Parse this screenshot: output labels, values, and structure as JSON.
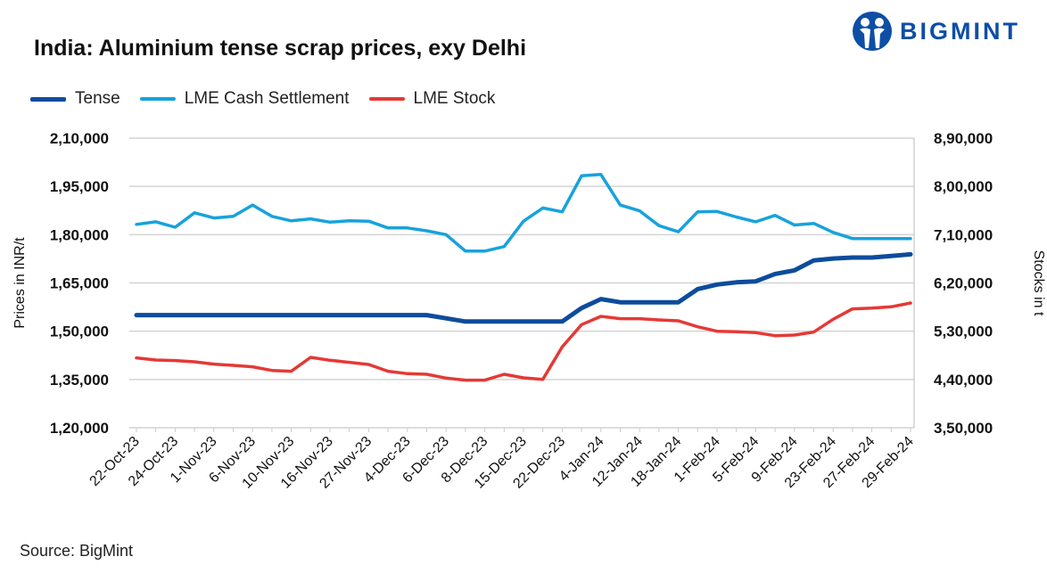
{
  "title": "India: Aluminium tense scrap prices, exy Delhi",
  "source": "Source: BigMint",
  "logo": {
    "text": "BIGMINT",
    "color": "#0d4ea6"
  },
  "chart_data": {
    "type": "line",
    "title": "India: Aluminium tense scrap prices, exy Delhi",
    "ylabel": "Prices in INR/t",
    "y2label": "Stocks in t",
    "ylim": [
      120000,
      210000
    ],
    "y2lim": [
      350000,
      890000
    ],
    "yticks": [
      "1,20,000",
      "1,35,000",
      "1,50,000",
      "1,65,000",
      "1,80,000",
      "1,95,000",
      "2,10,000"
    ],
    "y2ticks": [
      "3,50,000",
      "4,40,000",
      "5,30,000",
      "6,20,000",
      "7,10,000",
      "8,00,000",
      "8,90,000"
    ],
    "ytick_values": [
      120000,
      135000,
      150000,
      165000,
      180000,
      195000,
      210000
    ],
    "y2tick_values": [
      350000,
      440000,
      530000,
      620000,
      710000,
      800000,
      890000
    ],
    "grid": true,
    "legend_position": "top-left",
    "x_tick_labels": [
      "22-Oct-23",
      "24-Oct-23",
      "1-Nov-23",
      "6-Nov-23",
      "10-Nov-23",
      "16-Nov-23",
      "27-Nov-23",
      "4-Dec-23",
      "6-Dec-23",
      "8-Dec-23",
      "15-Dec-23",
      "22-Dec-23",
      "4-Jan-24",
      "12-Jan-24",
      "18-Jan-24",
      "1-Feb-24",
      "5-Feb-24",
      "9-Feb-24",
      "23-Feb-24",
      "27-Feb-24",
      "29-Feb-24"
    ],
    "series": [
      {
        "name": "Tense",
        "axis": "left",
        "color": "#0d4c9c",
        "values": [
          155000,
          155000,
          155000,
          155000,
          155000,
          155000,
          155000,
          155000,
          155000,
          155000,
          155000,
          155000,
          155000,
          155000,
          155000,
          155000,
          154000,
          153000,
          153000,
          153000,
          153000,
          153000,
          153000,
          157200,
          160000,
          159000,
          159000,
          159000,
          159000,
          163100,
          164500,
          165200,
          165500,
          167800,
          168900,
          172000,
          172600,
          172900,
          172900,
          173400,
          173900
        ]
      },
      {
        "name": "LME Cash Settlement",
        "axis": "left",
        "color": "#17a2dc",
        "values": [
          183200,
          184000,
          182300,
          186800,
          185200,
          185700,
          189200,
          185700,
          184300,
          184900,
          183900,
          184300,
          184200,
          182100,
          182100,
          181200,
          180000,
          174900,
          174900,
          176300,
          184200,
          188300,
          187100,
          198300,
          198700,
          189200,
          187400,
          182800,
          180900,
          187100,
          187200,
          185500,
          184000,
          186000,
          183000,
          183500,
          180700,
          178800,
          178800,
          178800,
          178800
        ]
      },
      {
        "name": "LME Stock",
        "axis": "right",
        "color": "#e53935",
        "values": [
          480200,
          476300,
          475200,
          473000,
          468600,
          466300,
          463600,
          456900,
          455300,
          481300,
          475800,
          471900,
          468000,
          455300,
          450800,
          449700,
          442500,
          438700,
          438700,
          449700,
          443000,
          440300,
          500700,
          542200,
          557700,
          553300,
          553300,
          551100,
          549400,
          538300,
          530000,
          528900,
          527300,
          521700,
          522800,
          528400,
          552200,
          571600,
          573200,
          575400,
          582600
        ]
      }
    ]
  }
}
